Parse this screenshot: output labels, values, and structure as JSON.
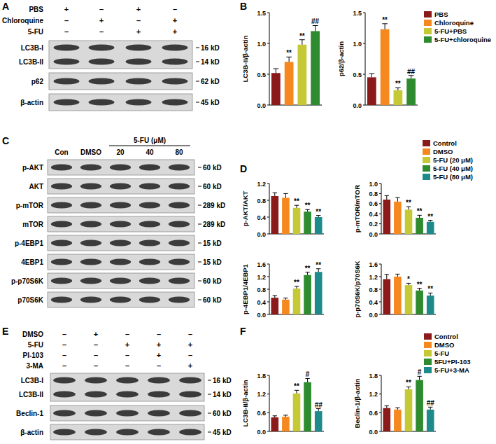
{
  "panel_labels": [
    "A",
    "B",
    "C",
    "D",
    "E",
    "F"
  ],
  "blots": [
    {
      "conditions": [
        {
          "label": "PBS",
          "signs": [
            "+",
            "–",
            "+",
            "–"
          ]
        },
        {
          "label": "Chloroquine",
          "signs": [
            "–",
            "+",
            "–",
            "+"
          ]
        },
        {
          "label": "5-FU",
          "signs": [
            "–",
            "–",
            "+",
            "+"
          ]
        }
      ],
      "rows": [
        {
          "labels": [
            "LC3B-I",
            "LC3B-II"
          ],
          "sizes": [
            "16 kD",
            "14 kD"
          ]
        },
        {
          "labels": [
            "p62"
          ],
          "sizes": [
            "62 kD"
          ]
        },
        {
          "labels": [
            "β-actin"
          ],
          "sizes": [
            "45 kD"
          ]
        }
      ]
    },
    {
      "lanes": [
        "Con",
        "DMSO",
        {
          "group": "5-FU (μM)",
          "lanes": [
            "20",
            "40",
            "80"
          ]
        }
      ],
      "rows": [
        {
          "labels": [
            "p-AKT"
          ],
          "sizes": [
            "60 kD"
          ]
        },
        {
          "labels": [
            "AKT"
          ],
          "sizes": [
            "60 kD"
          ]
        },
        {
          "labels": [
            "p-mTOR"
          ],
          "sizes": [
            "289 kD"
          ]
        },
        {
          "labels": [
            "mTOR"
          ],
          "sizes": [
            "289 kD"
          ]
        },
        {
          "labels": [
            "p-4EBP1"
          ],
          "sizes": [
            "15 kD"
          ]
        },
        {
          "labels": [
            "4EBP1"
          ],
          "sizes": [
            "15 kD"
          ]
        },
        {
          "labels": [
            "p-p70S6K"
          ],
          "sizes": [
            "60 kD"
          ]
        },
        {
          "labels": [
            "p70S6K"
          ],
          "sizes": [
            "60 kD"
          ]
        }
      ]
    },
    {
      "conditions": [
        {
          "label": "DMSO",
          "signs": [
            "–",
            "+",
            "–",
            "–",
            "–"
          ]
        },
        {
          "label": "5-FU",
          "signs": [
            "–",
            "–",
            "+",
            "+",
            "+"
          ]
        },
        {
          "label": "PI-103",
          "signs": [
            "–",
            "–",
            "–",
            "+",
            "–"
          ]
        },
        {
          "label": "3-MA",
          "signs": [
            "–",
            "–",
            "–",
            "–",
            "+"
          ]
        }
      ],
      "rows": [
        {
          "labels": [
            "LC3B-I",
            "LC3B-II"
          ],
          "sizes": [
            "16 kD",
            "14 kD"
          ]
        },
        {
          "labels": [
            "Beclin-1"
          ],
          "sizes": [
            "60 kD"
          ]
        },
        {
          "labels": [
            "β-actin"
          ],
          "sizes": [
            "45 kD"
          ]
        }
      ]
    }
  ],
  "chart_data": [
    {
      "type": "bar",
      "y_label": "LC3B-II/β-actin",
      "categories": [
        null,
        null,
        null,
        null
      ],
      "colors": [
        "#8b1a1a",
        "#f5891f",
        "#c5c935",
        "#2e8b2f"
      ],
      "values": [
        0.52,
        0.7,
        0.98,
        1.2
      ],
      "errors": [
        0.07,
        0.08,
        0.08,
        0.09
      ],
      "annotations": [
        null,
        "**",
        "**",
        "##"
      ],
      "ylim": [
        0,
        1.5
      ],
      "yticks": [
        {
          "value": 0,
          "label": "0.0"
        },
        0.5,
        {
          "value": 1,
          "label": "1.0"
        },
        1.5
      ],
      "tick_labels": "y"
    },
    {
      "type": "bar",
      "y_label": "p62/β-actin",
      "categories": [
        "PBS",
        "Chloroquine",
        "5-FU+PBS",
        "5-FU+chloroquine"
      ],
      "colors": [
        "#8b1a1a",
        "#f5891f",
        "#c5c935",
        "#2e8b2f"
      ],
      "values": [
        0.45,
        1.23,
        0.24,
        0.43
      ],
      "errors": [
        0.06,
        0.09,
        0.04,
        0.05
      ],
      "annotations": [
        null,
        "**",
        "**",
        "##"
      ],
      "ylim": [
        0,
        1.5
      ],
      "yticks": [
        {
          "value": 0,
          "label": "0.0"
        },
        0.5,
        {
          "value": 1,
          "label": "1.0"
        },
        1.5
      ],
      "tick_labels": "y",
      "legend": "top-right"
    },
    {
      "type": "bar",
      "y_label": "p-AKT/AKT",
      "categories": [
        null,
        null,
        null,
        null,
        null
      ],
      "colors": [
        "#8b1a1a",
        "#f5891f",
        "#c5c935",
        "#2e8b2f",
        "#1d8b8b"
      ],
      "values": [
        0.9,
        0.86,
        0.62,
        0.53,
        0.4
      ],
      "errors": [
        0.08,
        0.1,
        0.06,
        0.05,
        0.04
      ],
      "annotations": [
        null,
        null,
        "**",
        "**",
        "**"
      ],
      "ylim": [
        0,
        1.2
      ],
      "yticks": [
        {
          "value": 0,
          "label": "0.0"
        },
        0.4,
        0.8,
        1.2
      ],
      "tick_labels": "y"
    },
    {
      "type": "bar",
      "y_label": "p-mTOR/mTOR",
      "categories": [
        "Control",
        "DMSO",
        "5-FU (20 μM)",
        "5-FU (40 μM)",
        "5-FU (80 μM)"
      ],
      "colors": [
        "#8b1a1a",
        "#f5891f",
        "#c5c935",
        "#2e8b2f",
        "#1d8b8b"
      ],
      "values": [
        0.68,
        0.64,
        0.48,
        0.32,
        0.24
      ],
      "errors": [
        0.08,
        0.08,
        0.06,
        0.05,
        0.03
      ],
      "annotations": [
        null,
        null,
        "**",
        "**",
        "**"
      ],
      "ylim": [
        0,
        1
      ],
      "yticks": [
        {
          "value": 0,
          "label": "0.0"
        },
        0.2,
        0.4,
        0.6,
        0.8,
        {
          "value": 1,
          "label": "1.0"
        }
      ],
      "tick_labels": "y",
      "legend": "top-right"
    },
    {
      "type": "bar",
      "y_label": "p-4EBP1/4EBP1",
      "categories": [
        null,
        null,
        null,
        null,
        null
      ],
      "colors": [
        "#8b1a1a",
        "#f5891f",
        "#c5c935",
        "#2e8b2f",
        "#1d8b8b"
      ],
      "values": [
        0.53,
        0.47,
        0.82,
        1.25,
        1.35
      ],
      "errors": [
        0.07,
        0.05,
        0.07,
        0.09,
        0.1
      ],
      "annotations": [
        null,
        null,
        "**",
        "**",
        "**"
      ],
      "ylim": [
        0,
        1.6
      ],
      "yticks": [
        {
          "value": 0,
          "label": "0.0"
        },
        0.4,
        0.8,
        1.2,
        1.6
      ],
      "tick_labels": "y"
    },
    {
      "type": "bar",
      "y_label": "p-p70S6K/p70S6K",
      "categories": [
        null,
        null,
        null,
        null,
        null
      ],
      "colors": [
        "#8b1a1a",
        "#f5891f",
        "#c5c935",
        "#2e8b2f",
        "#1d8b8b"
      ],
      "values": [
        1.12,
        1.2,
        0.93,
        0.76,
        0.6
      ],
      "errors": [
        0.15,
        0.08,
        0.06,
        0.07,
        0.08
      ],
      "annotations": [
        null,
        null,
        "*",
        "**",
        "**"
      ],
      "ylim": [
        0,
        1.6
      ],
      "yticks": [
        {
          "value": 0,
          "label": "0.0"
        },
        0.4,
        0.8,
        1.2,
        1.6
      ],
      "tick_labels": "y"
    },
    {
      "type": "bar",
      "y_label": "LC3B-II/β-actin",
      "categories": [
        null,
        null,
        null,
        null,
        null
      ],
      "colors": [
        "#8b1a1a",
        "#f5891f",
        "#c5c935",
        "#2e8b2f",
        "#1d8b8b"
      ],
      "values": [
        0.45,
        0.47,
        1.22,
        1.58,
        0.65
      ],
      "errors": [
        0.05,
        0.05,
        0.1,
        0.12,
        0.08
      ],
      "annotations": [
        null,
        null,
        "**",
        "#",
        "##"
      ],
      "ylim": [
        0,
        1.8
      ],
      "yticks": [
        {
          "value": 0,
          "label": "0.0"
        },
        0.6,
        1.2,
        1.8
      ],
      "tick_labels": "y"
    },
    {
      "type": "bar",
      "y_label": "Beclin-1/β-actin",
      "categories": [
        "Control",
        "DMSO",
        "5-FU",
        "5FU+PI-103",
        "5-FU+3-MA"
      ],
      "colors": [
        "#8b1a1a",
        "#f5891f",
        "#c5c935",
        "#2e8b2f",
        "#1d8b8b"
      ],
      "values": [
        0.75,
        0.7,
        1.35,
        1.65,
        0.7
      ],
      "errors": [
        0.07,
        0.06,
        0.08,
        0.12,
        0.08
      ],
      "annotations": [
        null,
        null,
        "**",
        "#",
        "##"
      ],
      "ylim": [
        0,
        1.8
      ],
      "yticks": [
        {
          "value": 0,
          "label": "0.0"
        },
        0.6,
        1.2,
        1.8
      ],
      "tick_labels": "y",
      "legend": "top-right"
    }
  ]
}
